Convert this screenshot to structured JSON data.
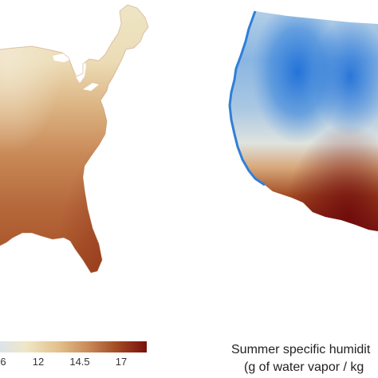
{
  "map": {
    "colors": {
      "dark_red": "#7a0e0e",
      "brown": "#a2481d",
      "orange_brown": "#c9895a",
      "tan": "#e6c796",
      "cream": "#efe6c6",
      "pale_blue": "#cfe0ea",
      "light_blue": "#9fc3e3",
      "blue": "#5c9bdf",
      "bright_blue": "#1d6fd8"
    },
    "panels": [
      "eastern-us-map",
      "western-us-map"
    ]
  },
  "legend": {
    "ticks": [
      "6",
      "12",
      "14.5",
      "17"
    ],
    "title_line1": "Summer specific humidit",
    "title_line2": "(g of water vapor / kg"
  }
}
